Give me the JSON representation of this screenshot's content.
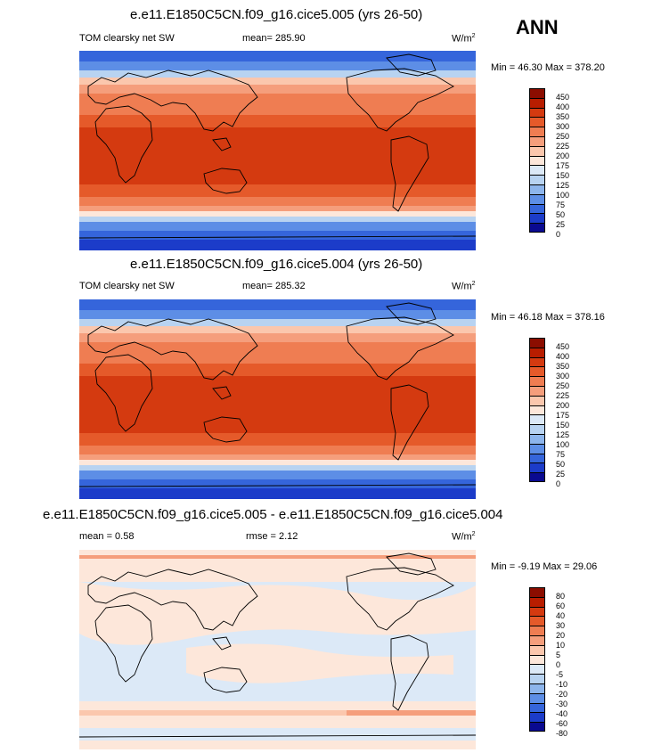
{
  "season_label": "ANN",
  "panels": [
    {
      "title": "e.e11.E1850C5CN.f09_g16.cice5.005 (yrs 26-50)",
      "left_label": "TOM clearsky net SW",
      "center_label": "mean= 285.90",
      "units": "W/m",
      "units_sup": "2",
      "minmax": "Min =  46.30 Max = 378.20",
      "levels": [
        "450",
        "400",
        "350",
        "300",
        "250",
        "225",
        "200",
        "175",
        "150",
        "125",
        "100",
        "75",
        "50",
        "25",
        "0"
      ]
    },
    {
      "title": "e.e11.E1850C5CN.f09_g16.cice5.004 (yrs 26-50)",
      "left_label": "TOM clearsky net SW",
      "center_label": "mean= 285.32",
      "units": "W/m",
      "units_sup": "2",
      "minmax": "Min =  46.18 Max = 378.16",
      "levels": [
        "450",
        "400",
        "350",
        "300",
        "250",
        "225",
        "200",
        "175",
        "150",
        "125",
        "100",
        "75",
        "50",
        "25",
        "0"
      ]
    },
    {
      "title": "e.e11.E1850C5CN.f09_g16.cice5.005 - e.e11.E1850C5CN.f09_g16.cice5.004",
      "left_label": "mean =   0.58",
      "center_label": "rmse =   2.12",
      "units": "W/m",
      "units_sup": "2",
      "minmax": "Min =  -9.19 Max =  29.06",
      "levels": [
        "80",
        "60",
        "40",
        "30",
        "20",
        "10",
        "5",
        "0",
        "-5",
        "-10",
        "-20",
        "-30",
        "-40",
        "-60",
        "-80"
      ]
    }
  ],
  "colors": {
    "abs_scale": [
      "#8b0d00",
      "#b81d00",
      "#d43a10",
      "#e55a2a",
      "#ef7d52",
      "#f59e7c",
      "#fbc7ad",
      "#fde7da",
      "#dce9f7",
      "#b8d3f1",
      "#8db5ec",
      "#5d8ee6",
      "#3565db",
      "#1c3cc9",
      "#0a0a90"
    ],
    "diff_scale": [
      "#8b0d00",
      "#b81d00",
      "#d43a10",
      "#e55a2a",
      "#ef7d52",
      "#f59e7c",
      "#fbc7ad",
      "#fde7da",
      "#dce9f7",
      "#b8d3f1",
      "#8db5ec",
      "#5d8ee6",
      "#3565db",
      "#1c3cc9",
      "#0a0a90"
    ]
  }
}
